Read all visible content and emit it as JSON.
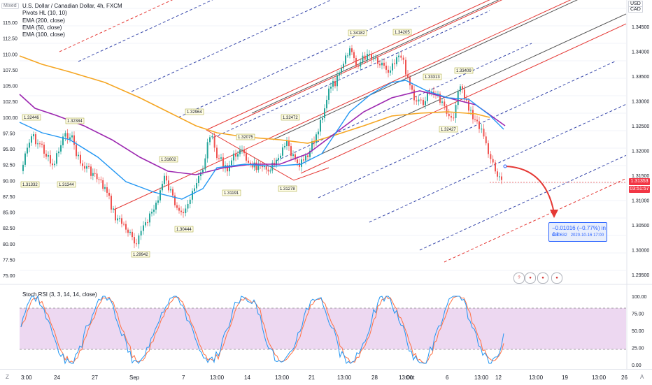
{
  "header": {
    "scale_mode": "Mixed",
    "title": "U.S. Dollar / Canadian Dollar, 4h, FXCM",
    "indicators": [
      "Pivots HL (10, 10)",
      "EMA (200, close)",
      "EMA (50, close)",
      "EMA (100, close)"
    ]
  },
  "right_scale": {
    "usd_label": "USD",
    "cad_label": "CAD",
    "ticks": [
      "1.34500",
      "1.34000",
      "1.33500",
      "1.33000",
      "1.32500",
      "1.32000",
      "1.31500",
      "1.31000",
      "1.30500",
      "1.30000",
      "1.29500"
    ],
    "price_tag": "1.31353",
    "countdown_tag": "03:51:57"
  },
  "left_scale": {
    "ticks": [
      "115.00",
      "112.50",
      "110.00",
      "107.50",
      "105.00",
      "102.50",
      "100.00",
      "97.50",
      "95.00",
      "92.50",
      "90.00",
      "87.50",
      "85.00",
      "82.50",
      "80.00",
      "77.50",
      "75.00"
    ]
  },
  "pivots": [
    {
      "label": "1.32446"
    },
    {
      "label": "1.32384"
    },
    {
      "label": "1.31332"
    },
    {
      "label": "1.31344"
    },
    {
      "label": "1.31602"
    },
    {
      "label": "1.29942"
    },
    {
      "label": "1.30444"
    },
    {
      "label": "1.32964"
    },
    {
      "label": "1.32075"
    },
    {
      "label": "1.31191"
    },
    {
      "label": "1.32472"
    },
    {
      "label": "1.31278"
    },
    {
      "label": "1.34182"
    },
    {
      "label": "1.34205"
    },
    {
      "label": "1.33313"
    },
    {
      "label": "1.33409"
    },
    {
      "label": "1.32427"
    }
  ],
  "measure": {
    "line1": "−0.01016 (−0.77%) in 4d",
    "line2_price": "1.30632",
    "line2_date": "2020-10-16  17:00"
  },
  "oscillator": {
    "legend": "Stoch RSI (3, 3, 14, 14, close)",
    "ticks": [
      "100.00",
      "75.00",
      "50.00",
      "25.00",
      "0.00"
    ]
  },
  "time_axis": {
    "left_icon": "Z",
    "right_icon": "A",
    "labels": [
      "3:00",
      "24",
      "27",
      "Sep",
      "7",
      "13:00",
      "14",
      "13:00",
      "21",
      "13:00",
      "28",
      "13:00",
      "Oct",
      "6",
      "13:00",
      "12",
      "13:00",
      "19",
      "13:00",
      "26"
    ]
  },
  "colors": {
    "bull": "#26a69a",
    "bear": "#ef5350",
    "ema200": "#f5a623",
    "ema100": "#9c27b0",
    "ema50": "#2196f3",
    "fork_red": "#e53935",
    "fork_blue": "#3949ab",
    "stoch_k": "#2196f3",
    "stoch_d": "#ff7043",
    "band_fill": "#e1bee7"
  }
}
